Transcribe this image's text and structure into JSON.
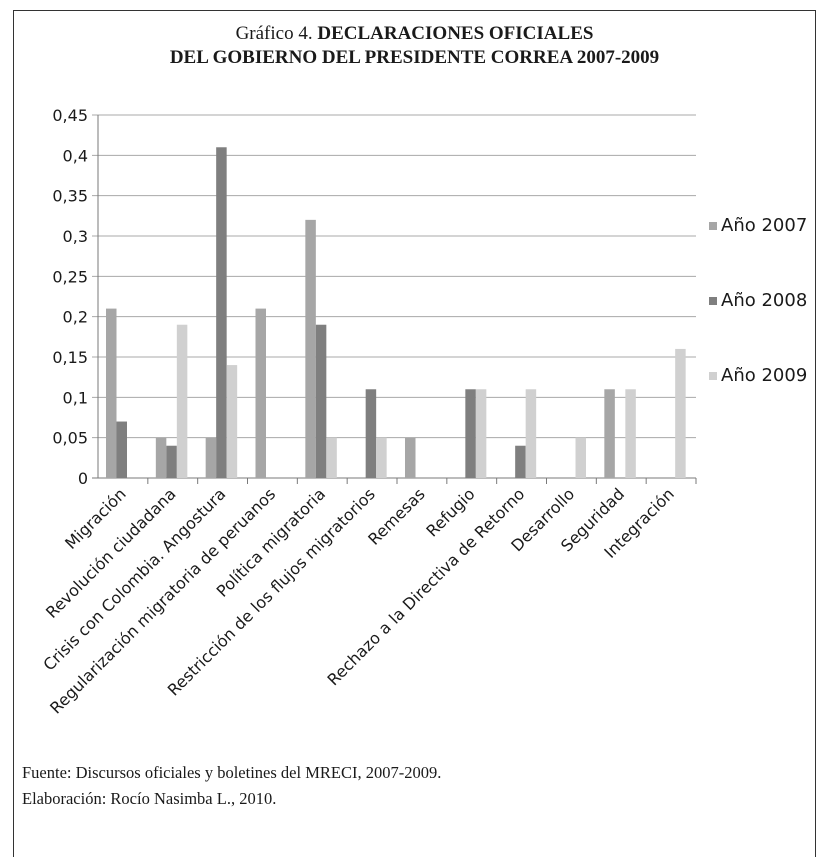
{
  "figure": {
    "title_prefix": "Gráfico 4.",
    "title_line1": "DECLARACIONES OFICIALES",
    "title_line2": "DEL GOBIERNO DEL PRESIDENTE CORREA 2007-2009",
    "source": "Fuente: Discursos oficiales y boletines del MRECI, 2007-2009.",
    "credit": "Elaboración: Rocío Nasimba L., 2010."
  },
  "chart_data": {
    "type": "bar",
    "categories": [
      "Migración",
      "Revolución ciudadana",
      "Crisis con Colombia. Angostura",
      "Regularización migratoria de peruanos",
      "Política migratoria",
      "Restricción de los flujos migratorios",
      "Remesas",
      "Refugio",
      "Rechazo a la Directiva de Retorno",
      "Desarrollo",
      "Seguridad",
      "Integración"
    ],
    "series": [
      {
        "name": "Año 2007",
        "color": "#a6a6a6",
        "values": [
          0.21,
          0.05,
          0.05,
          0.21,
          0.32,
          0,
          0.05,
          0,
          0,
          0,
          0.11,
          0
        ]
      },
      {
        "name": "Año 2008",
        "color": "#7f7f7f",
        "values": [
          0.07,
          0.04,
          0.41,
          0,
          0.19,
          0.11,
          0,
          0.11,
          0.04,
          0,
          0,
          0
        ]
      },
      {
        "name": "Año 2009",
        "color": "#d0d0d0",
        "values": [
          0,
          0.19,
          0.14,
          0,
          0.05,
          0.05,
          0,
          0.11,
          0.11,
          0.05,
          0.11,
          0.16
        ]
      }
    ],
    "yticks": [
      "0",
      "0,05",
      "0,1",
      "0,15",
      "0,2",
      "0,25",
      "0,3",
      "0,35",
      "0,4",
      "0,45"
    ],
    "ylim": [
      0,
      0.45
    ],
    "grid": true,
    "legend_position": "right"
  }
}
